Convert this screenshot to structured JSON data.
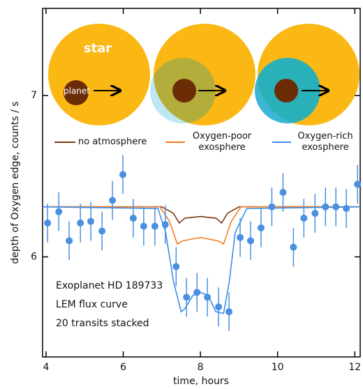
{
  "chart_data": {
    "type": "scatter",
    "xlabel": "time, hours",
    "ylabel": "depth of Oxygen edge, counts / s",
    "xlim": [
      3.91,
      12.14
    ],
    "ylim": [
      5.38,
      7.54
    ],
    "xticks": [
      4,
      6,
      8,
      10,
      12
    ],
    "yticks": [
      6,
      7
    ],
    "annotations": [
      "Exoplanet HD 189733",
      "LEM flux curve",
      "20 transits stacked",
      "star",
      "planet"
    ],
    "points": {
      "color": "#4a90e2",
      "x": [
        4.04,
        4.33,
        4.6,
        4.89,
        5.16,
        5.45,
        5.72,
        5.99,
        6.26,
        6.53,
        6.82,
        7.09,
        7.37,
        7.64,
        7.91,
        8.18,
        8.47,
        8.74,
        9.03,
        9.3,
        9.57,
        9.85,
        10.14,
        10.41,
        10.68,
        10.97,
        11.24,
        11.51,
        11.78,
        12.07
      ],
      "values": [
        6.21,
        6.28,
        6.1,
        6.21,
        6.22,
        6.16,
        6.35,
        6.51,
        6.24,
        6.19,
        6.19,
        6.2,
        5.94,
        5.75,
        5.78,
        5.75,
        5.69,
        5.66,
        6.12,
        6.1,
        6.18,
        6.31,
        6.4,
        6.06,
        6.24,
        6.27,
        6.31,
        6.31,
        6.3,
        6.45
      ],
      "errors": [
        0.12,
        0.12,
        0.12,
        0.12,
        0.12,
        0.12,
        0.12,
        0.12,
        0.12,
        0.12,
        0.12,
        0.12,
        0.12,
        0.12,
        0.12,
        0.12,
        0.12,
        0.12,
        0.12,
        0.12,
        0.12,
        0.12,
        0.12,
        0.12,
        0.12,
        0.12,
        0.12,
        0.12,
        0.12,
        0.12
      ]
    },
    "series": [
      {
        "name": "no atmosphere",
        "color": "#7a3b12",
        "x": [
          3.91,
          7.0,
          7.3,
          7.45,
          7.6,
          8.0,
          8.4,
          8.55,
          8.7,
          9.0,
          12.14
        ],
        "values": [
          6.31,
          6.31,
          6.27,
          6.21,
          6.24,
          6.25,
          6.24,
          6.21,
          6.27,
          6.31,
          6.31
        ]
      },
      {
        "name": "Oxygen-poor exosphere",
        "color": "#f47a20",
        "x": [
          3.91,
          6.95,
          7.2,
          7.4,
          7.55,
          8.0,
          8.45,
          8.6,
          8.8,
          9.05,
          12.14
        ],
        "values": [
          6.31,
          6.31,
          6.22,
          6.08,
          6.1,
          6.12,
          6.1,
          6.08,
          6.22,
          6.31,
          6.31
        ]
      },
      {
        "name": "Oxygen-rich exosphere",
        "color": "#3d8ee6",
        "x": [
          3.91,
          6.9,
          7.1,
          7.3,
          7.5,
          7.6,
          7.8,
          8.0,
          8.2,
          8.4,
          8.6,
          8.75,
          8.9,
          9.2,
          12.14
        ],
        "values": [
          6.31,
          6.3,
          6.15,
          5.85,
          5.66,
          5.68,
          5.76,
          5.78,
          5.76,
          5.66,
          5.65,
          5.85,
          6.15,
          6.3,
          6.31
        ]
      }
    ]
  }
}
